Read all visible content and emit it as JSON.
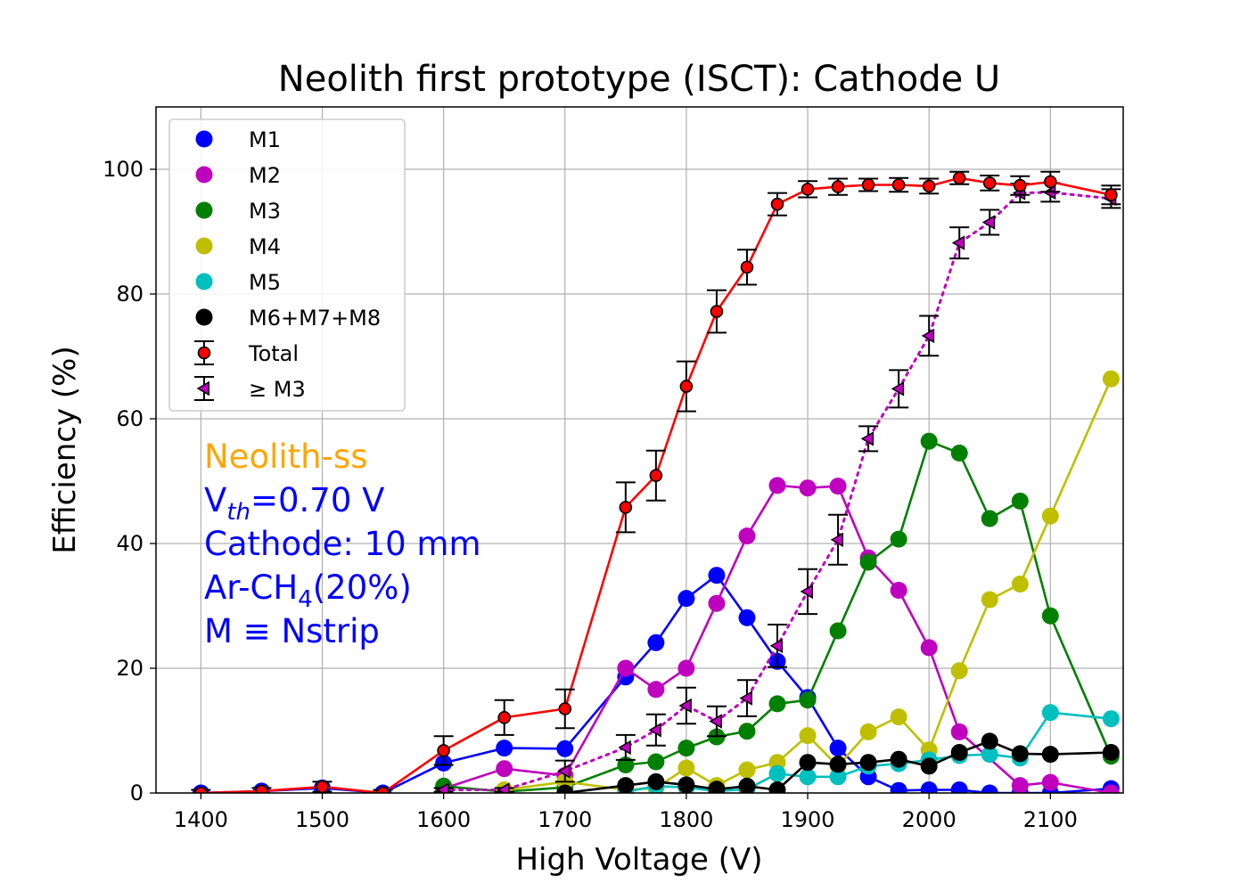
{
  "chart_data": {
    "type": "line",
    "title": "Neolith first prototype (ISCT): Cathode U",
    "xlabel": "High Voltage (V)",
    "ylabel": "Efficiency (%)",
    "xlim": [
      1363,
      2160
    ],
    "ylim": [
      0,
      110
    ],
    "xticks": [
      1400,
      1500,
      1600,
      1700,
      1800,
      1900,
      2000,
      2100
    ],
    "yticks": [
      0,
      20,
      40,
      60,
      80,
      100
    ],
    "grid": true,
    "legend_position": "top-left",
    "series": [
      {
        "name": "M1",
        "color": "#0000ff",
        "style": "solid",
        "marker": "circle",
        "points": [
          [
            1400,
            0
          ],
          [
            1450,
            0.3
          ],
          [
            1500,
            0.8
          ],
          [
            1550,
            0
          ],
          [
            1600,
            4.8
          ],
          [
            1650,
            7.2
          ],
          [
            1700,
            7.1
          ],
          [
            1750,
            18.6
          ],
          [
            1775,
            24.1
          ],
          [
            1800,
            31.2
          ],
          [
            1825,
            34.9
          ],
          [
            1850,
            28.1
          ],
          [
            1875,
            21.1
          ],
          [
            1900,
            15.3
          ],
          [
            1925,
            7.2
          ],
          [
            1950,
            2.6
          ],
          [
            1975,
            0.4
          ],
          [
            2000,
            0.5
          ],
          [
            2025,
            0.5
          ],
          [
            2050,
            0
          ],
          [
            2075,
            0
          ],
          [
            2100,
            0
          ],
          [
            2150,
            0.7
          ]
        ]
      },
      {
        "name": "M2",
        "color": "#bf00bf",
        "style": "solid",
        "marker": "circle",
        "points": [
          [
            1600,
            0.7
          ],
          [
            1650,
            3.9
          ],
          [
            1700,
            2.8
          ],
          [
            1750,
            20
          ],
          [
            1775,
            16.6
          ],
          [
            1800,
            20
          ],
          [
            1825,
            30.4
          ],
          [
            1850,
            41.2
          ],
          [
            1875,
            49.3
          ],
          [
            1900,
            48.9
          ],
          [
            1925,
            49.2
          ],
          [
            1950,
            37.7
          ],
          [
            1975,
            32.5
          ],
          [
            2000,
            23.3
          ],
          [
            2025,
            9.8
          ],
          [
            2075,
            1.2
          ],
          [
            2100,
            1.7
          ],
          [
            2150,
            0
          ]
        ]
      },
      {
        "name": "M3",
        "color": "#008000",
        "style": "solid",
        "marker": "circle",
        "points": [
          [
            1600,
            1.1
          ],
          [
            1650,
            0.2
          ],
          [
            1700,
            0.9
          ],
          [
            1750,
            4.5
          ],
          [
            1775,
            5
          ],
          [
            1800,
            7.2
          ],
          [
            1825,
            9
          ],
          [
            1850,
            9.9
          ],
          [
            1875,
            14.3
          ],
          [
            1900,
            14.9
          ],
          [
            1925,
            26
          ],
          [
            1950,
            37
          ],
          [
            1975,
            40.7
          ],
          [
            2000,
            56.4
          ],
          [
            2025,
            54.5
          ],
          [
            2050,
            44
          ],
          [
            2075,
            46.8
          ],
          [
            2100,
            28.4
          ],
          [
            2150,
            5.9
          ]
        ]
      },
      {
        "name": "M4",
        "color": "#bfbf00",
        "style": "solid",
        "marker": "circle",
        "points": [
          [
            1650,
            0.5
          ],
          [
            1700,
            1.8
          ],
          [
            1750,
            0.5
          ],
          [
            1775,
            0.8
          ],
          [
            1800,
            4
          ],
          [
            1825,
            1.2
          ],
          [
            1850,
            3.7
          ],
          [
            1875,
            4.9
          ],
          [
            1900,
            9.2
          ],
          [
            1925,
            4.3
          ],
          [
            1950,
            9.8
          ],
          [
            1975,
            12.2
          ],
          [
            2000,
            6.9
          ],
          [
            2025,
            19.6
          ],
          [
            2050,
            31
          ],
          [
            2075,
            33.5
          ],
          [
            2100,
            44.4
          ],
          [
            2150,
            66.4
          ]
        ]
      },
      {
        "name": "M5",
        "color": "#00bfbf",
        "style": "solid",
        "marker": "circle",
        "points": [
          [
            1750,
            0.2
          ],
          [
            1775,
            1.1
          ],
          [
            1800,
            0.9
          ],
          [
            1825,
            0.3
          ],
          [
            1850,
            0.6
          ],
          [
            1875,
            3.1
          ],
          [
            1900,
            2.6
          ],
          [
            1925,
            2.6
          ],
          [
            1950,
            4.3
          ],
          [
            1975,
            4.7
          ],
          [
            2000,
            5.3
          ],
          [
            2025,
            6
          ],
          [
            2050,
            6.2
          ],
          [
            2075,
            5.6
          ],
          [
            2100,
            12.9
          ],
          [
            2150,
            11.9
          ]
        ]
      },
      {
        "name": "M6+M7+M8",
        "color": "#000000",
        "style": "solid",
        "marker": "circle",
        "points": [
          [
            1700,
            0
          ],
          [
            1750,
            1.2
          ],
          [
            1775,
            1.8
          ],
          [
            1800,
            1.3
          ],
          [
            1825,
            0.6
          ],
          [
            1850,
            1.1
          ],
          [
            1875,
            0.5
          ],
          [
            1900,
            4.9
          ],
          [
            1925,
            4.6
          ],
          [
            1950,
            4.9
          ],
          [
            1975,
            5.4
          ],
          [
            2000,
            4.3
          ],
          [
            2025,
            6.5
          ],
          [
            2050,
            8.3
          ],
          [
            2075,
            6.3
          ],
          [
            2100,
            6.2
          ],
          [
            2150,
            6.5
          ]
        ]
      },
      {
        "name": "Total",
        "color": "#ff0000",
        "style": "solid",
        "marker": "circle-errorbar",
        "points": [
          [
            1400,
            0
          ],
          [
            1450,
            0.3
          ],
          [
            1500,
            1.0
          ],
          [
            1550,
            0
          ],
          [
            1600,
            6.8
          ],
          [
            1650,
            12.1
          ],
          [
            1700,
            13.5
          ],
          [
            1750,
            45.8
          ],
          [
            1775,
            50.9
          ],
          [
            1800,
            65.2
          ],
          [
            1825,
            77.2
          ],
          [
            1850,
            84.3
          ],
          [
            1875,
            94.4
          ],
          [
            1900,
            96.8
          ],
          [
            1925,
            97.2
          ],
          [
            1950,
            97.5
          ],
          [
            1975,
            97.5
          ],
          [
            2000,
            97.3
          ],
          [
            2025,
            98.6
          ],
          [
            2050,
            97.8
          ],
          [
            2075,
            97.4
          ],
          [
            2100,
            98
          ],
          [
            2150,
            95.9
          ]
        ],
        "errors": [
          0.5,
          0.5,
          0.8,
          0.5,
          2.3,
          2.8,
          3.1,
          4,
          4,
          4,
          3.4,
          2.8,
          1.8,
          1.3,
          1.3,
          1,
          1.1,
          1.2,
          1,
          1.2,
          1.5,
          1.6,
          1.5
        ]
      },
      {
        "name": "≥ M3",
        "color": "#bf00bf",
        "style": "dotted",
        "marker": "triangle-left-errorbar",
        "points": [
          [
            1600,
            0.5
          ],
          [
            1650,
            0.5
          ],
          [
            1700,
            3.5
          ],
          [
            1750,
            7.3
          ],
          [
            1775,
            10.1
          ],
          [
            1800,
            14
          ],
          [
            1825,
            11.5
          ],
          [
            1850,
            15.2
          ],
          [
            1875,
            23.6
          ],
          [
            1900,
            32.3
          ],
          [
            1925,
            40.6
          ],
          [
            1950,
            56.8
          ],
          [
            1975,
            64.8
          ],
          [
            2000,
            73.3
          ],
          [
            2025,
            88.2
          ],
          [
            2050,
            91.5
          ],
          [
            2075,
            96.2
          ],
          [
            2100,
            96.3
          ],
          [
            2150,
            95.3
          ]
        ],
        "errors": [
          0.3,
          0.3,
          1.7,
          2,
          2.5,
          2.9,
          2.4,
          2.9,
          3.4,
          3.6,
          4,
          2,
          3,
          3.2,
          2.5,
          2,
          1.5,
          1.5,
          1.5
        ]
      }
    ],
    "annotations": [
      {
        "id": "detector",
        "text": "Neolith-ss",
        "color": "#ffa500"
      },
      {
        "id": "vth",
        "prefix": "V",
        "subscript": "th",
        "suffix": "=0.70 V",
        "color": "#0000ff"
      },
      {
        "id": "cathode",
        "text": "Cathode: 10 mm",
        "color": "#0000ff"
      },
      {
        "id": "gas",
        "prefix": "Ar-CH",
        "subscript": "4",
        "suffix": "(20%)",
        "color": "#0000ff"
      },
      {
        "id": "mdef",
        "text": "M ≡ Nstrip",
        "color": "#0000ff"
      }
    ]
  }
}
